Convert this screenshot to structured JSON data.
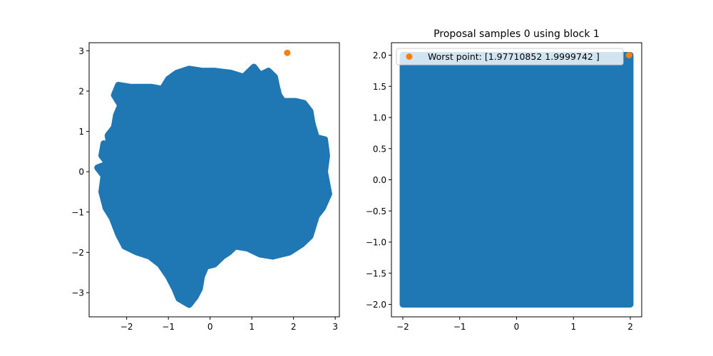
{
  "figure": {
    "background": "#ffffff"
  },
  "chart_data": [
    {
      "type": "scatter",
      "title": "",
      "xlabel": "",
      "ylabel": "",
      "xlim": [
        -2.9,
        3.1
      ],
      "ylim": [
        -3.6,
        3.2
      ],
      "xticks": [
        -2,
        -1,
        0,
        1,
        2,
        3
      ],
      "yticks": [
        -3,
        -2,
        -1,
        0,
        1,
        2,
        3
      ],
      "xtick_labels": [
        "−2",
        "−1",
        "0",
        "1",
        "2",
        "3"
      ],
      "ytick_labels": [
        "−3",
        "−2",
        "−1",
        "0",
        "1",
        "2",
        "3"
      ],
      "grid": false,
      "legend": null,
      "series": [
        {
          "kind": "cloud",
          "color": "#1f77b4",
          "boundary": [
            [
              -2.55,
              0.7
            ],
            [
              -2.4,
              0.55
            ],
            [
              -2.45,
              0.9
            ],
            [
              -2.3,
              1.1
            ],
            [
              -2.25,
              1.4
            ],
            [
              -2.15,
              1.65
            ],
            [
              -2.3,
              1.9
            ],
            [
              -2.2,
              2.15
            ],
            [
              -1.9,
              2.1
            ],
            [
              -1.4,
              2.1
            ],
            [
              -1.15,
              2.05
            ],
            [
              -1.0,
              2.3
            ],
            [
              -0.8,
              2.45
            ],
            [
              -0.5,
              2.55
            ],
            [
              -0.2,
              2.5
            ],
            [
              0.1,
              2.5
            ],
            [
              0.5,
              2.45
            ],
            [
              0.8,
              2.35
            ],
            [
              0.9,
              2.45
            ],
            [
              1.05,
              2.6
            ],
            [
              1.2,
              2.4
            ],
            [
              1.4,
              2.5
            ],
            [
              1.55,
              2.35
            ],
            [
              1.6,
              2.1
            ],
            [
              1.65,
              1.9
            ],
            [
              1.75,
              1.75
            ],
            [
              2.05,
              1.75
            ],
            [
              2.25,
              1.7
            ],
            [
              2.4,
              1.5
            ],
            [
              2.45,
              1.2
            ],
            [
              2.55,
              0.85
            ],
            [
              2.75,
              0.8
            ],
            [
              2.8,
              0.4
            ],
            [
              2.75,
              0.0
            ],
            [
              2.85,
              -0.55
            ],
            [
              2.7,
              -0.9
            ],
            [
              2.55,
              -1.1
            ],
            [
              2.4,
              -1.6
            ],
            [
              2.2,
              -1.8
            ],
            [
              1.9,
              -2.0
            ],
            [
              1.5,
              -2.1
            ],
            [
              1.2,
              -2.05
            ],
            [
              0.9,
              -1.9
            ],
            [
              0.6,
              -1.85
            ],
            [
              0.45,
              -2.0
            ],
            [
              0.3,
              -2.1
            ],
            [
              0.1,
              -2.3
            ],
            [
              -0.1,
              -2.35
            ],
            [
              -0.2,
              -2.6
            ],
            [
              -0.25,
              -2.9
            ],
            [
              -0.35,
              -3.1
            ],
            [
              -0.5,
              -3.3
            ],
            [
              -0.75,
              -3.15
            ],
            [
              -0.85,
              -2.9
            ],
            [
              -1.0,
              -2.6
            ],
            [
              -1.2,
              -2.3
            ],
            [
              -1.45,
              -2.1
            ],
            [
              -1.75,
              -2.0
            ],
            [
              -2.05,
              -1.85
            ],
            [
              -2.2,
              -1.55
            ],
            [
              -2.35,
              -1.15
            ],
            [
              -2.5,
              -0.9
            ],
            [
              -2.6,
              -0.5
            ],
            [
              -2.55,
              -0.1
            ],
            [
              -2.7,
              0.1
            ],
            [
              -2.45,
              0.2
            ],
            [
              -2.6,
              0.4
            ]
          ]
        },
        {
          "kind": "points",
          "color": "#ff7f0e",
          "points": [
            [
              1.85,
              2.95
            ]
          ]
        }
      ]
    },
    {
      "type": "scatter",
      "title": "Proposal samples 0 using block 1",
      "xlabel": "",
      "ylabel": "",
      "xlim": [
        -2.2,
        2.2
      ],
      "ylim": [
        -2.2,
        2.2
      ],
      "xticks": [
        -2,
        -1,
        0,
        1,
        2
      ],
      "yticks": [
        -2.0,
        -1.5,
        -1.0,
        -0.5,
        0.0,
        0.5,
        1.0,
        1.5,
        2.0
      ],
      "xtick_labels": [
        "−2",
        "−1",
        "0",
        "1",
        "2"
      ],
      "ytick_labels": [
        "−2.0",
        "−1.5",
        "−1.0",
        "−0.5",
        "0.0",
        "0.5",
        "1.0",
        "1.5",
        "2.0"
      ],
      "grid": false,
      "legend": {
        "position": "top-left",
        "entries": [
          {
            "label": "Worst point: [1.97710852 1.9999742 ]",
            "color": "#ff7f0e"
          }
        ]
      },
      "series": [
        {
          "kind": "cloud",
          "color": "#1f77b4",
          "boundary": [
            [
              -2.0,
              -2.0
            ],
            [
              2.0,
              -2.0
            ],
            [
              2.0,
              2.0
            ],
            [
              -2.0,
              2.0
            ]
          ]
        },
        {
          "kind": "points",
          "name": "Worst point: [1.97710852 1.9999742 ]",
          "color": "#ff7f0e",
          "points": [
            [
              1.9771,
              1.99997
            ]
          ]
        }
      ]
    }
  ]
}
